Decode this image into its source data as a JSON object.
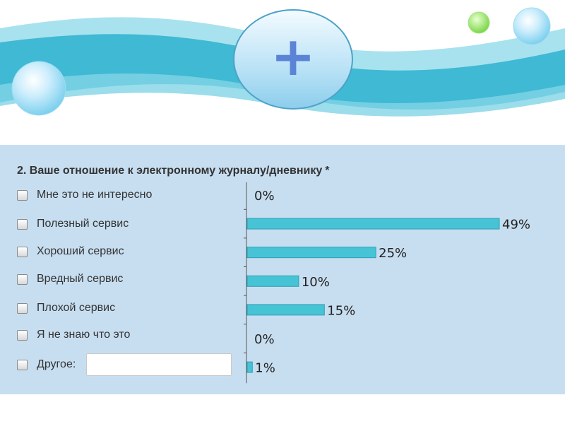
{
  "header": {
    "plus_symbol": "+"
  },
  "question": {
    "text": "2. Ваше отношение к электронному журналу/дневнику",
    "required_mark": "*"
  },
  "options": [
    {
      "label": "Мне это не интересно"
    },
    {
      "label": "Полезный сервис"
    },
    {
      "label": "Хороший сервис"
    },
    {
      "label": "Вредный сервис"
    },
    {
      "label": "Плохой сервис"
    },
    {
      "label": "Я не знаю что это"
    },
    {
      "label": "Другое:"
    }
  ],
  "other_input": {
    "value": ""
  },
  "colors": {
    "bar": "#47c3d6",
    "panel": "#c7def0",
    "wave": "#3fb9d4"
  },
  "chart_data": {
    "type": "bar",
    "orientation": "horizontal",
    "categories": [
      "Мне это не интересно",
      "Полезный сервис",
      "Хороший сервис",
      "Вредный сервис",
      "Плохой сервис",
      "Я не знаю что это",
      "Другое:"
    ],
    "values": [
      0,
      49,
      25,
      10,
      15,
      0,
      1
    ],
    "value_labels": [
      "0%",
      "49%",
      "25%",
      "10%",
      "15%",
      "0%",
      "1%"
    ],
    "xlim": [
      0,
      49
    ],
    "grid": false,
    "legend": "none"
  }
}
